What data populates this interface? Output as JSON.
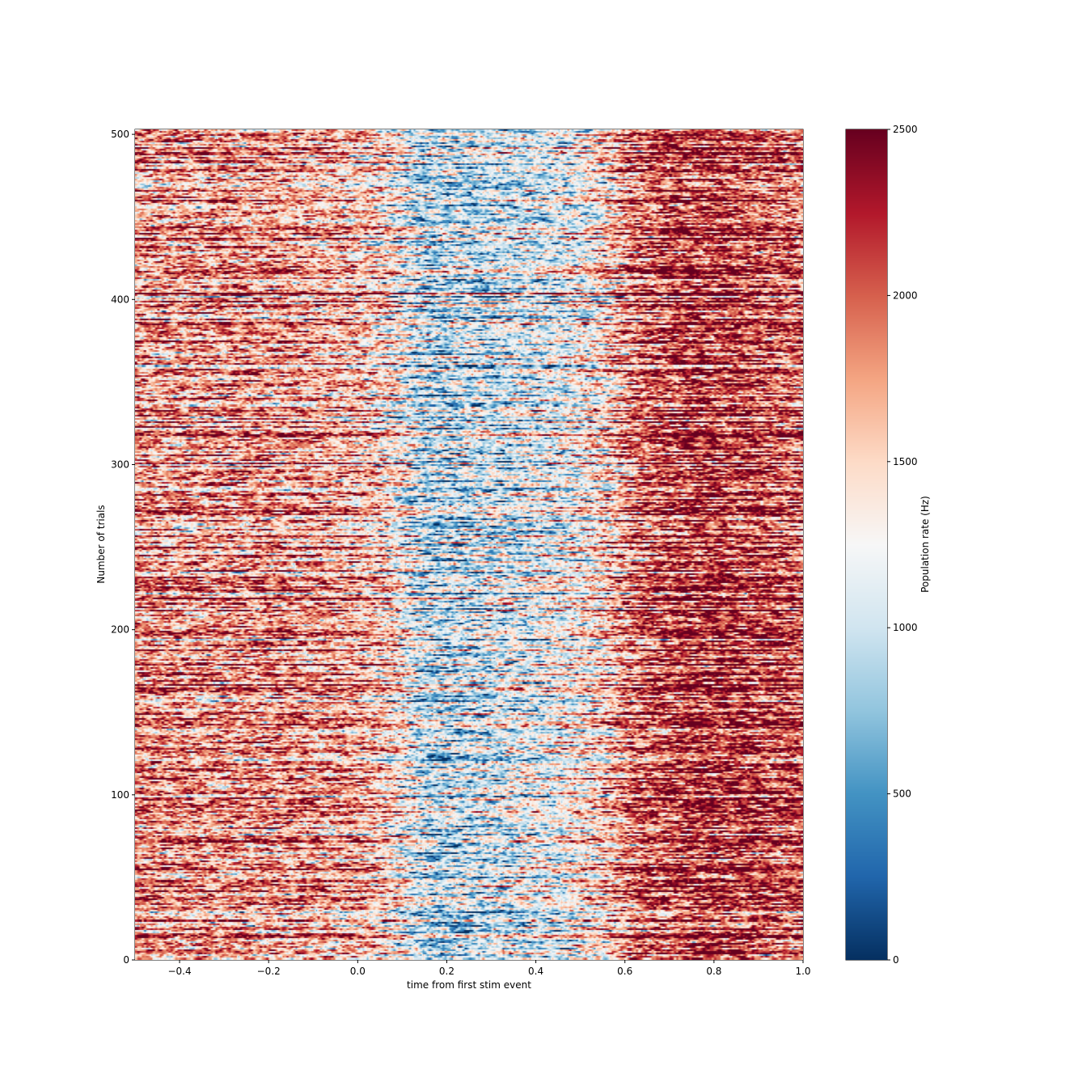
{
  "chart_data": {
    "type": "heatmap",
    "xlabel": "time from first stim event",
    "ylabel": "Number of trials",
    "xlim": [
      -0.5,
      1.0
    ],
    "ylim": [
      0,
      503
    ],
    "x_ticks": [
      -0.4,
      -0.2,
      0.0,
      0.2,
      0.4,
      0.6,
      0.8,
      1.0
    ],
    "x_tick_labels": [
      "−0.4",
      "−0.2",
      "0.0",
      "0.2",
      "0.4",
      "0.6",
      "0.8",
      "1.0"
    ],
    "y_ticks": [
      0,
      100,
      200,
      300,
      400,
      500
    ],
    "y_tick_labels": [
      "0",
      "100",
      "200",
      "300",
      "400",
      "500"
    ],
    "n_trials": 503,
    "colormap": "RdBu_r",
    "colorbar": {
      "label": "Population rate (Hz)",
      "vmin": 0,
      "vmax": 2500,
      "ticks": [
        0,
        500,
        1000,
        1500,
        2000,
        2500
      ],
      "tick_labels": [
        "0",
        "500",
        "1000",
        "1500",
        "2000",
        "2500"
      ]
    },
    "mean_rate_profile": {
      "time": [
        -0.5,
        -0.2,
        0.0,
        0.08,
        0.1,
        0.15,
        0.3,
        0.45,
        0.55,
        0.62,
        0.75,
        0.9,
        1.0
      ],
      "rate_hz": [
        1800,
        1750,
        1650,
        1450,
        1300,
        900,
        1000,
        1150,
        1450,
        1950,
        2150,
        2050,
        1950
      ]
    },
    "colors": {
      "low": "#053061",
      "mid": "#f7f7f7",
      "high": "#67001f"
    }
  }
}
